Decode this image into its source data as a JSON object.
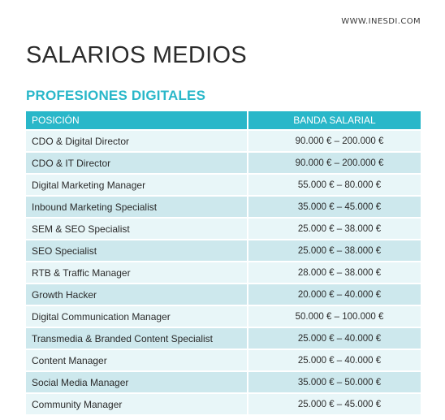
{
  "header": {
    "site_url": "WWW.INESDI.COM",
    "title": "SALARIOS MEDIOS",
    "subtitle": "PROFESIONES DIGITALES"
  },
  "table": {
    "columns": [
      "POSICIÓN",
      "BANDA SALARIAL"
    ],
    "rows": [
      {
        "position": "CDO & Digital Director",
        "band": "90.000 € – 200.000 €"
      },
      {
        "position": "CDO & IT Director",
        "band": "90.000 € – 200.000 €"
      },
      {
        "position": "Digital Marketing Manager",
        "band": "55.000 € – 80.000 €"
      },
      {
        "position": "Inbound Marketing Specialist",
        "band": "35.000 € – 45.000 €"
      },
      {
        "position": "SEM & SEO Specialist",
        "band": "25.000 € – 38.000 €"
      },
      {
        "position": "SEO Specialist",
        "band": "25.000 € – 38.000 €"
      },
      {
        "position": "RTB & Traffic Manager",
        "band": "28.000 € – 38.000 €"
      },
      {
        "position": "Growth Hacker",
        "band": "20.000 € – 40.000 €"
      },
      {
        "position": "Digital Communication Manager",
        "band": "50.000 € – 100.000 €"
      },
      {
        "position": "Transmedia & Branded Content Specialist",
        "band": "25.000 € – 40.000 €"
      },
      {
        "position": "Content Manager",
        "band": "25.000 € – 40.000 €"
      },
      {
        "position": "Social Media Manager",
        "band": "35.000 € – 50.000 €"
      },
      {
        "position": "Community Manager",
        "band": "25.000 € – 45.000 €"
      }
    ]
  },
  "colors": {
    "accent": "#29b7c9",
    "row_light": "#e8f6f8",
    "row_dark": "#cde8ed",
    "text": "#2b2b2b"
  }
}
